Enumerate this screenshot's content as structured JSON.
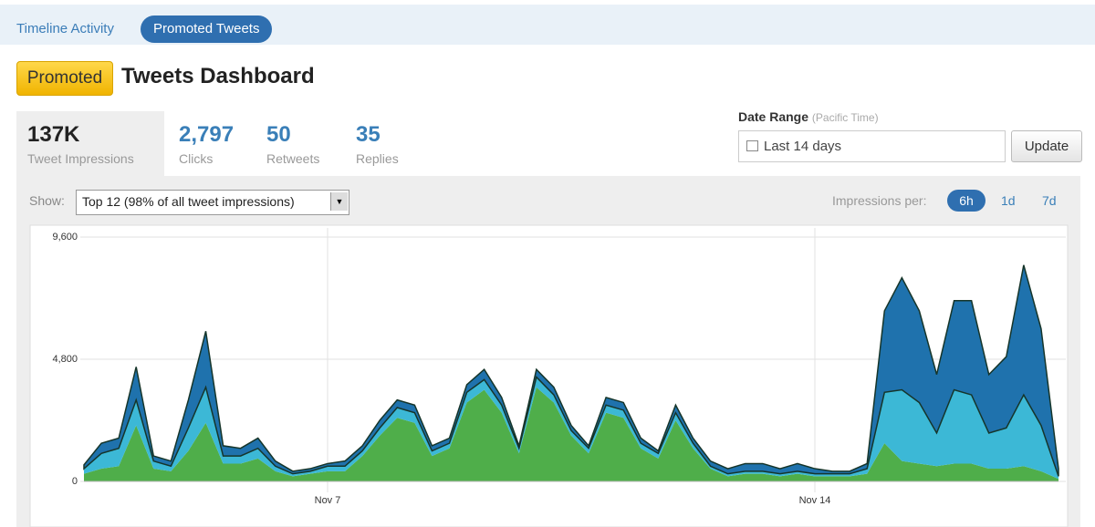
{
  "nav": {
    "tabs": [
      "Timeline Activity",
      "Promoted Tweets"
    ]
  },
  "header": {
    "badge": "Promoted",
    "title": "Tweets Dashboard"
  },
  "stats": [
    {
      "value": "137K",
      "label": "Tweet Impressions"
    },
    {
      "value": "2,797",
      "label": "Clicks"
    },
    {
      "value": "50",
      "label": "Retweets"
    },
    {
      "value": "35",
      "label": "Replies"
    }
  ],
  "date_range": {
    "label": "Date Range",
    "note": "(Pacific Time)",
    "input": "Last 14 days",
    "button": "Update"
  },
  "controls": {
    "show_label": "Show:",
    "show_value": "Top 12 (98% of all tweet impressions)",
    "per_label": "Impressions per:",
    "per_options": [
      "6h",
      "1d",
      "7d"
    ]
  },
  "chart_data": {
    "type": "stacked_area",
    "categories": [
      null,
      null,
      null,
      null,
      null,
      null,
      null,
      null,
      null,
      null,
      null,
      null,
      null,
      null,
      "Nov 7",
      null,
      null,
      null,
      null,
      null,
      null,
      null,
      null,
      null,
      null,
      null,
      null,
      null,
      null,
      null,
      null,
      null,
      null,
      null,
      null,
      null,
      null,
      null,
      null,
      null,
      null,
      null,
      "Nov 14",
      null,
      null,
      null,
      null,
      null,
      null,
      null,
      null,
      null,
      null,
      null,
      null,
      null,
      null
    ],
    "series": [
      {
        "color": "#4fae4a",
        "values": [
          300,
          500,
          600,
          2200,
          500,
          400,
          1200,
          2300,
          700,
          700,
          900,
          400,
          200,
          300,
          400,
          400,
          1000,
          1800,
          2500,
          2300,
          1000,
          1300,
          3100,
          3600,
          2700,
          1100,
          3700,
          3100,
          1800,
          1100,
          2700,
          2500,
          1300,
          900,
          2400,
          1300,
          500,
          200,
          300,
          300,
          200,
          300,
          200,
          200,
          200,
          300,
          1500,
          800,
          700,
          600,
          700,
          700,
          500,
          500,
          600,
          400,
          100
        ]
      },
      {
        "color": "#3cb8d6",
        "values": [
          200,
          600,
          700,
          1000,
          300,
          200,
          900,
          1400,
          300,
          300,
          400,
          200,
          100,
          100,
          200,
          200,
          200,
          300,
          400,
          400,
          200,
          200,
          400,
          400,
          300,
          200,
          400,
          300,
          200,
          200,
          300,
          300,
          200,
          200,
          300,
          200,
          100,
          100,
          100,
          100,
          100,
          100,
          100,
          100,
          100,
          200,
          2000,
          2800,
          2400,
          1300,
          2900,
          2700,
          1400,
          1600,
          2800,
          1800,
          100
        ]
      },
      {
        "color": "#1f72ad",
        "values": [
          150,
          400,
          400,
          1300,
          200,
          200,
          1100,
          2200,
          400,
          300,
          400,
          200,
          100,
          100,
          100,
          200,
          200,
          300,
          300,
          300,
          200,
          200,
          300,
          400,
          300,
          100,
          300,
          300,
          200,
          100,
          300,
          300,
          200,
          100,
          300,
          200,
          200,
          200,
          300,
          300,
          200,
          300,
          200,
          100,
          100,
          200,
          3200,
          4400,
          3600,
          2300,
          3500,
          3700,
          2300,
          2800,
          5100,
          3800,
          300
        ]
      }
    ],
    "ylim": [
      0,
      9600
    ],
    "yticks": [
      0,
      {
        "value": 4800,
        "label": "4,800"
      },
      {
        "value": 9600,
        "label": "9,600"
      }
    ],
    "grid": true
  }
}
